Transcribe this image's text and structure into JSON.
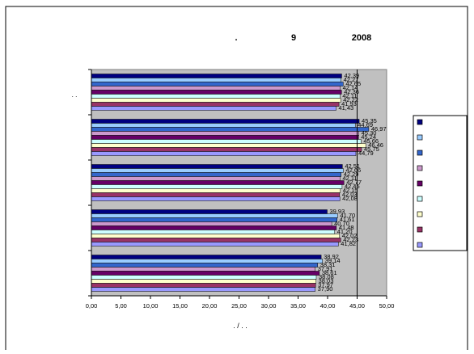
{
  "chart_data": {
    "type": "bar",
    "orientation": "horizontal",
    "title_fragments": [
      ".",
      "9",
      "2008"
    ],
    "xlabel": ". / . .",
    "ylabel": ". .",
    "xlim": [
      0,
      50
    ],
    "x_ticks": [
      "0,00",
      "5,00",
      "10,00",
      "15,00",
      "20,00",
      "25,00",
      "30,00",
      "35,00",
      "40,00",
      "45,00",
      "50,00"
    ],
    "reference_line": 45,
    "plot_background": "#c0c0c0",
    "grid": false,
    "legend_position": "right",
    "groups": [
      {
        "values": [
          42.39,
          42.27,
          42.65,
          42.14,
          42.36,
          42.11,
          42.22,
          41.93,
          41.43
        ],
        "labels": [
          "42,39",
          "42,27",
          "42,65",
          "42,14",
          "42,36",
          "42,11",
          "42,22",
          "41,93",
          "41,43"
        ]
      },
      {
        "values": [
          45.35,
          44.69,
          46.97,
          45.3,
          45.24,
          45.66,
          46.46,
          45.75,
          44.79
        ],
        "labels": [
          "45,35",
          "44,69",
          "46,97",
          "45,30",
          "45,24",
          "45,66",
          "46,46",
          "45,75",
          "44,79"
        ]
      },
      {
        "values": [
          42.51,
          42.66,
          42.29,
          42.11,
          42.77,
          42.45,
          42.15,
          42.03,
          42.08
        ],
        "labels": [
          "42,51",
          "42,66",
          "42,29",
          "42,11",
          "42,77",
          "42,45",
          "42,15",
          "42,03",
          "42,08"
        ]
      },
      {
        "values": [
          39.93,
          41.7,
          41.61,
          40.7,
          41.48,
          41.2,
          42.02,
          42.23,
          41.82
        ],
        "labels": [
          "39,93",
          "41,70",
          "41,61",
          "40,70",
          "41,48",
          "41,20",
          "42,02",
          "42,23",
          "41,82"
        ]
      },
      {
        "values": [
          38.92,
          39.14,
          38.31,
          37.91,
          38.61,
          38.08,
          38.03,
          37.97,
          37.9
        ],
        "labels": [
          "38,92",
          "39,14",
          "38,31",
          "37,91",
          "38,61",
          "38,08",
          "38,03",
          "37,97",
          "37,90"
        ]
      }
    ],
    "series_colors": [
      "#000080",
      "#99ccff",
      "#3366cc",
      "#cc99cc",
      "#660066",
      "#ccffff",
      "#ffffcc",
      "#993366",
      "#9999ff"
    ],
    "legend_swatches": [
      "#000080",
      "#99ccff",
      "#3366cc",
      "#cc99cc",
      "#660066",
      "#ccffff",
      "#ffffcc",
      "#993366",
      "#9999ff"
    ]
  }
}
